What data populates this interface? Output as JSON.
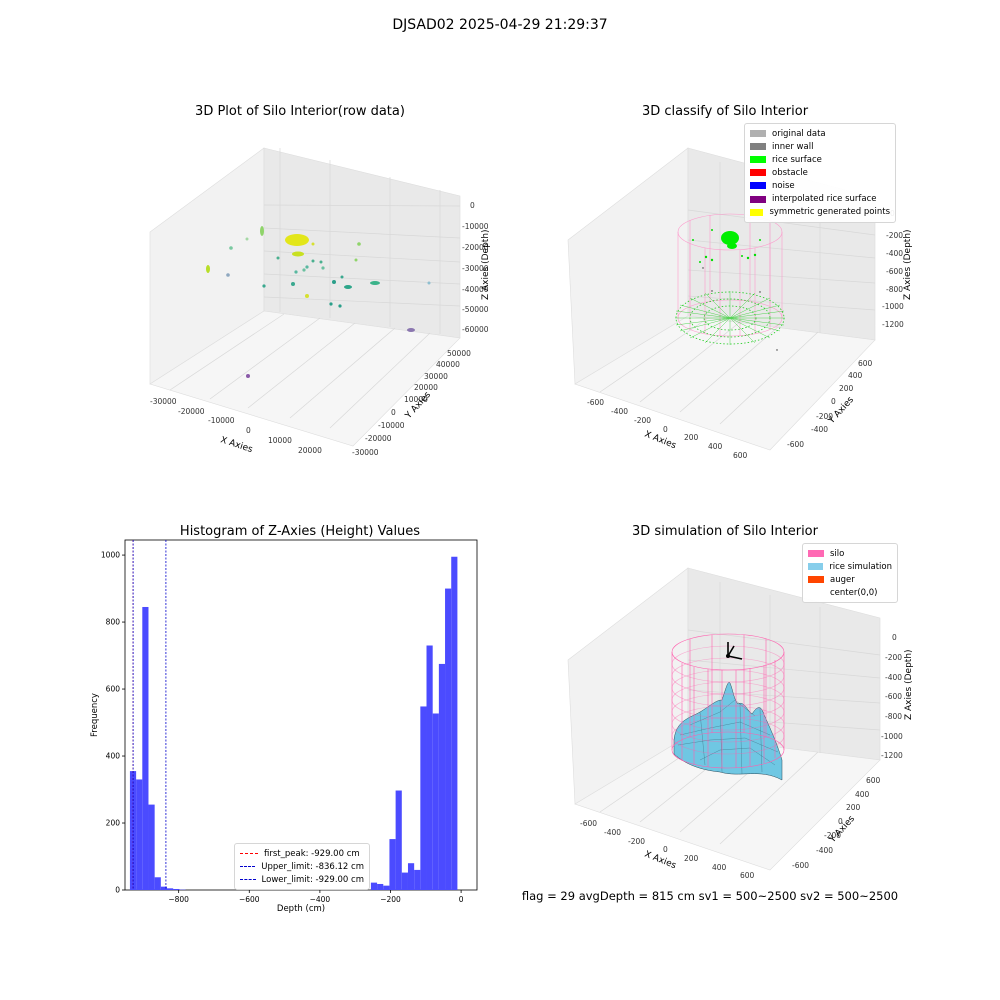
{
  "suptitle": "DJSAD02 2025-04-29 21:29:37",
  "footer": "flag = 29  avgDepth = 815 cm  sv1 = 500~2500  sv2 = 500~2500",
  "panels": {
    "raw": {
      "title": "3D Plot of Silo Interior(row data)",
      "xlabel": "X Axies",
      "ylabel": "Y Axies",
      "zlabel": "Z Axies (Depth)",
      "xticks": [
        "-30000",
        "-20000",
        "-10000",
        "0",
        "10000",
        "20000"
      ],
      "yticks": [
        "-30000",
        "-20000",
        "-10000",
        "0",
        "10000",
        "20000",
        "30000",
        "40000",
        "50000"
      ],
      "zticks": [
        "0",
        "-10000",
        "-20000",
        "-30000",
        "-40000",
        "-50000",
        "-60000"
      ]
    },
    "classify": {
      "title": "3D classify of Silo Interior",
      "xlabel": "X Axies",
      "ylabel": "Y Axies",
      "zlabel": "Z Axies (Depth)",
      "xticks": [
        "-600",
        "-400",
        "-200",
        "0",
        "200",
        "400",
        "600"
      ],
      "yticks": [
        "-600",
        "-400",
        "-200",
        "0",
        "200",
        "400",
        "600"
      ],
      "zticks": [
        "0",
        "-200",
        "-400",
        "-600",
        "-800",
        "-1000",
        "-1200"
      ],
      "legend": [
        {
          "label": "original data",
          "color": "#b0b0b0"
        },
        {
          "label": "inner wall",
          "color": "#808080"
        },
        {
          "label": "rice surface",
          "color": "#00ff00"
        },
        {
          "label": "obstacle",
          "color": "#ff0000"
        },
        {
          "label": "noise",
          "color": "#0000ff"
        },
        {
          "label": "interpolated rice surface",
          "color": "#800080"
        },
        {
          "label": "symmetric generated points",
          "color": "#ffff00"
        }
      ]
    },
    "simulation": {
      "title": "3D simulation of Silo Interior",
      "xlabel": "X Axies",
      "ylabel": "Y Axies",
      "zlabel": "Z Axies (Depth)",
      "xticks": [
        "-600",
        "-400",
        "-200",
        "0",
        "200",
        "400",
        "600"
      ],
      "yticks": [
        "-600",
        "-400",
        "-200",
        "0",
        "200",
        "400",
        "600"
      ],
      "zticks": [
        "0",
        "-200",
        "-400",
        "-600",
        "-800",
        "-1000",
        "-1200"
      ],
      "legend": [
        {
          "label": "silo",
          "color": "#ff69b4"
        },
        {
          "label": "rice simulation",
          "color": "#87ceeb"
        },
        {
          "label": "auger",
          "color": "#ff4500"
        },
        {
          "label": "center(0,0)",
          "color": "#ffffff"
        }
      ]
    }
  },
  "chart_data": {
    "type": "bar",
    "title": "Histogram of Z-Axies (Height) Values",
    "xlabel": "Depth (cm)",
    "ylabel": "Frequency",
    "xlim": [
      -952,
      45
    ],
    "ylim": [
      0,
      1045
    ],
    "xticks": [
      -800,
      -600,
      -400,
      -200,
      0
    ],
    "yticks": [
      0,
      200,
      400,
      600,
      800,
      1000
    ],
    "bar_color": "#4b4bff",
    "bin_width": 17.5,
    "bins_left": [
      -938,
      -920.5,
      -903,
      -885.5,
      -868,
      -850.5,
      -833,
      -815.5,
      -798,
      -780.5,
      -763,
      -745.5,
      -728,
      -710.5,
      -693,
      -675.5,
      -658,
      -640.5,
      -623,
      -605.5,
      -588,
      -570.5,
      -553,
      -535.5,
      -518,
      -500.5,
      -483,
      -465.5,
      -448,
      -430.5,
      -413,
      -395.5,
      -378,
      -360.5,
      -343,
      -325.5,
      -308,
      -290.5,
      -273,
      -255.5,
      -238,
      -220.5,
      -203,
      -185.5,
      -168,
      -150.5,
      -133,
      -115.5,
      -98,
      -80.5,
      -63,
      -45.5,
      -28,
      -10.5
    ],
    "counts": [
      355,
      330,
      845,
      255,
      38,
      10,
      5,
      3,
      1,
      0,
      0,
      0,
      0,
      0,
      0,
      0,
      0,
      0,
      0,
      0,
      0,
      0,
      0,
      0,
      0,
      0,
      0,
      0,
      0,
      0,
      0,
      0,
      0,
      0,
      3,
      0,
      0,
      0,
      0,
      22,
      18,
      13,
      152,
      297,
      52,
      80,
      60,
      548,
      730,
      527,
      675,
      900,
      995,
      0
    ],
    "lines": [
      {
        "label": "first_peak: -929.00 cm",
        "x": -929,
        "color": "#ff0000"
      },
      {
        "label": "Upper_limit: -836.12 cm",
        "x": -836.12,
        "color": "#0000cc"
      },
      {
        "label": "Lower_limit: -929.00 cm",
        "x": -929,
        "color": "#0000cc"
      }
    ]
  }
}
